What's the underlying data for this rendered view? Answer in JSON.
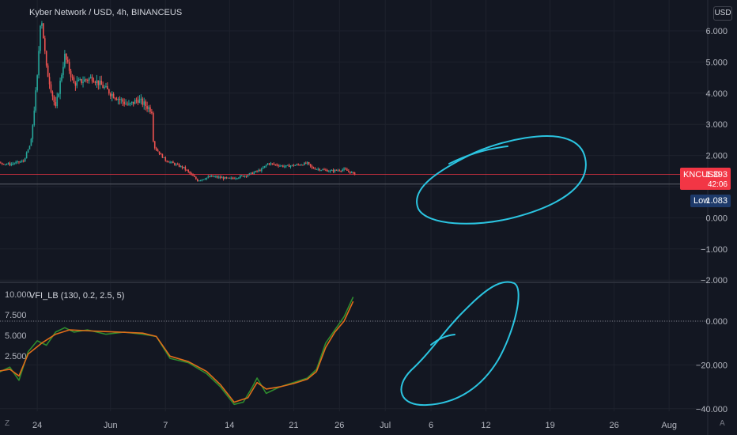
{
  "header": {
    "title": "Kyber Network / USD, 4h, BINANCEUS",
    "currency_badge": "USD"
  },
  "price_tag": {
    "symbol": "KNCUSD",
    "price": "1.393",
    "countdown": "42:06"
  },
  "low_tag": {
    "label": "Low",
    "value": "1.083"
  },
  "indicator": {
    "title": "VFI_LB (130, 0.2, 2.5, 5)"
  },
  "corner_labels": {
    "bottom_left": "Z",
    "bottom_right": "A"
  },
  "colors": {
    "background": "#131722",
    "up": "#26a69a",
    "down": "#ef5350",
    "price_line": "#f23645",
    "vfi_line": "#2e8b2e",
    "signal_line": "#e06c1a",
    "annotation": "#2bc4e0"
  },
  "chart_data": [
    {
      "type": "candlestick",
      "title": "Kyber Network / USD, 4h, BINANCEUS",
      "y_unit": "USD",
      "y_ticks": [
        6.0,
        5.0,
        4.0,
        3.0,
        2.0,
        1.0,
        0.0,
        -1.0,
        -2.0
      ],
      "y_tick_labels": [
        "6.000",
        "5.000",
        "4.000",
        "3.000",
        "2.000",
        "1.000",
        "0.000",
        "−1.000",
        "−2.000"
      ],
      "ylim": [
        -2.0,
        6.6
      ],
      "x_day_range": [
        22,
        65
      ],
      "last_price": 1.393,
      "low": 1.083,
      "grid": true,
      "price_path": [
        {
          "day": 22.0,
          "price": 1.75
        },
        {
          "day": 23.0,
          "price": 1.5
        },
        {
          "day": 25.0,
          "price": 1.72
        },
        {
          "day": 27.5,
          "price": 2.0
        },
        {
          "day": 29.0,
          "price": 1.78
        },
        {
          "day": 31.0,
          "price": 1.72
        },
        {
          "day": 32.5,
          "price": 1.82
        },
        {
          "day": 33.3,
          "price": 2.4
        },
        {
          "day": 34.0,
          "price": 4.5
        },
        {
          "day": 34.4,
          "price": 6.6
        },
        {
          "day": 35.0,
          "price": 4.8
        },
        {
          "day": 36.0,
          "price": 3.5
        },
        {
          "day": 37.0,
          "price": 5.2
        },
        {
          "day": 38.0,
          "price": 4.3
        },
        {
          "day": 40.0,
          "price": 4.5
        },
        {
          "day": 42.0,
          "price": 4.0
        },
        {
          "day": 44.0,
          "price": 3.6
        },
        {
          "day": 45.0,
          "price": 3.8
        },
        {
          "day": 46.5,
          "price": 3.45
        },
        {
          "day": 46.7,
          "price": 2.3
        },
        {
          "day": 48.0,
          "price": 1.85
        },
        {
          "day": 50.0,
          "price": 1.6
        },
        {
          "day": 51.5,
          "price": 1.2
        },
        {
          "day": 53.0,
          "price": 1.33
        },
        {
          "day": 55.0,
          "price": 1.25
        },
        {
          "day": 57.0,
          "price": 1.38
        },
        {
          "day": 58.5,
          "price": 1.55
        },
        {
          "day": 59.2,
          "price": 1.75
        },
        {
          "day": 61.0,
          "price": 1.65
        },
        {
          "day": 62.5,
          "price": 1.7
        },
        {
          "day": 63.5,
          "price": 1.75
        },
        {
          "day": 64.0,
          "price": 1.6
        },
        {
          "day": 66.0,
          "price": 1.5
        },
        {
          "day": 67.5,
          "price": 1.55
        },
        {
          "day": 68.8,
          "price": 1.39
        }
      ]
    },
    {
      "type": "line",
      "title": "VFI_LB (130, 0.2, 2.5, 5)",
      "left_axis_ticks": [
        "10.000",
        "7.500",
        "5.000",
        "2.500"
      ],
      "right_axis_ticks": [
        "0.000",
        "−20.000",
        "−40.000"
      ],
      "ylim": [
        -40.0,
        15.0
      ],
      "zero_line": 0.0,
      "series": [
        {
          "role": "vfi",
          "color": "#2e8b2e",
          "points": [
            {
              "day": 22.0,
              "value": -5.0
            },
            {
              "day": 23.5,
              "value": -8.0
            },
            {
              "day": 25.0,
              "value": -7.0
            },
            {
              "day": 26.5,
              "value": -4.0
            },
            {
              "day": 28.0,
              "value": -11.0
            },
            {
              "day": 29.5,
              "value": -24.0
            },
            {
              "day": 31.0,
              "value": -21.0
            },
            {
              "day": 32.0,
              "value": -27.0
            },
            {
              "day": 33.0,
              "value": -14.0
            },
            {
              "day": 34.0,
              "value": -9.0
            },
            {
              "day": 35.0,
              "value": -11.0
            },
            {
              "day": 36.0,
              "value": -5.0
            },
            {
              "day": 37.0,
              "value": -3.0
            },
            {
              "day": 38.0,
              "value": -5.0
            },
            {
              "day": 39.5,
              "value": -4.0
            },
            {
              "day": 41.5,
              "value": -6.0
            },
            {
              "day": 43.5,
              "value": -5.0
            },
            {
              "day": 45.5,
              "value": -6.0
            },
            {
              "day": 47.0,
              "value": -7.0
            },
            {
              "day": 48.5,
              "value": -17.0
            },
            {
              "day": 50.5,
              "value": -19.0
            },
            {
              "day": 52.5,
              "value": -24.0
            },
            {
              "day": 54.0,
              "value": -30.0
            },
            {
              "day": 55.5,
              "value": -38.0
            },
            {
              "day": 56.5,
              "value": -37.0
            },
            {
              "day": 57.5,
              "value": -30.0
            },
            {
              "day": 58.0,
              "value": -26.0
            },
            {
              "day": 59.0,
              "value": -33.0
            },
            {
              "day": 60.5,
              "value": -30.0
            },
            {
              "day": 62.0,
              "value": -28.0
            },
            {
              "day": 63.5,
              "value": -26.0
            },
            {
              "day": 64.5,
              "value": -22.0
            },
            {
              "day": 65.5,
              "value": -10.0
            },
            {
              "day": 66.5,
              "value": -4.0
            },
            {
              "day": 67.5,
              "value": 2.0
            },
            {
              "day": 68.5,
              "value": 11.0
            }
          ]
        },
        {
          "role": "signal",
          "color": "#e06c1a",
          "points": [
            {
              "day": 22.0,
              "value": -5.5
            },
            {
              "day": 24.0,
              "value": -7.5
            },
            {
              "day": 26.5,
              "value": -4.5
            },
            {
              "day": 28.0,
              "value": -10.0
            },
            {
              "day": 29.5,
              "value": -23.0
            },
            {
              "day": 31.0,
              "value": -22.0
            },
            {
              "day": 32.0,
              "value": -25.0
            },
            {
              "day": 33.0,
              "value": -15.0
            },
            {
              "day": 34.5,
              "value": -10.0
            },
            {
              "day": 36.0,
              "value": -6.0
            },
            {
              "day": 37.5,
              "value": -4.0
            },
            {
              "day": 40.0,
              "value": -4.5
            },
            {
              "day": 43.0,
              "value": -5.0
            },
            {
              "day": 45.5,
              "value": -5.5
            },
            {
              "day": 47.0,
              "value": -7.0
            },
            {
              "day": 48.5,
              "value": -16.0
            },
            {
              "day": 50.5,
              "value": -18.5
            },
            {
              "day": 52.5,
              "value": -23.0
            },
            {
              "day": 54.0,
              "value": -29.0
            },
            {
              "day": 55.5,
              "value": -37.0
            },
            {
              "day": 57.0,
              "value": -35.0
            },
            {
              "day": 58.0,
              "value": -28.0
            },
            {
              "day": 59.0,
              "value": -31.0
            },
            {
              "day": 60.5,
              "value": -30.0
            },
            {
              "day": 62.0,
              "value": -28.5
            },
            {
              "day": 63.5,
              "value": -26.5
            },
            {
              "day": 64.5,
              "value": -23.0
            },
            {
              "day": 65.5,
              "value": -12.0
            },
            {
              "day": 66.5,
              "value": -5.0
            },
            {
              "day": 67.5,
              "value": 0.0
            },
            {
              "day": 68.5,
              "value": 9.0
            }
          ]
        }
      ]
    }
  ],
  "x_axis": {
    "ticks": [
      {
        "day": 24,
        "label": "24"
      },
      {
        "day": 32,
        "label": "Jun"
      },
      {
        "day": 38,
        "label": "7"
      },
      {
        "day": 45,
        "label": "14"
      },
      {
        "day": 52,
        "label": "21"
      },
      {
        "day": 57,
        "label": "26"
      },
      {
        "day": 62,
        "label": "Jul"
      },
      {
        "day": 67,
        "label": "6"
      },
      {
        "day": 73,
        "label": "12"
      },
      {
        "day": 80,
        "label": "19"
      },
      {
        "day": 87,
        "label": "26"
      },
      {
        "day": 93,
        "label": "Aug"
      }
    ]
  }
}
